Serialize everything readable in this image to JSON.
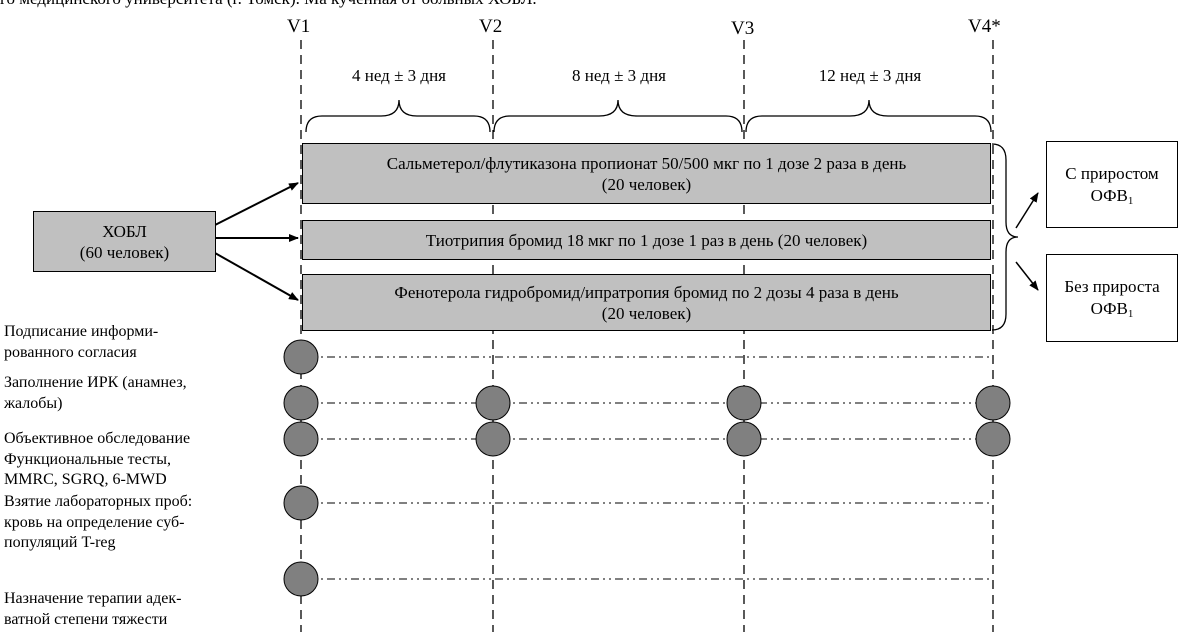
{
  "header_cut_text": "го медицинского университета (г. Томск). Ма           кученная от больных ХОБЛ.",
  "visits": [
    "V1",
    "V2",
    "V3",
    "V4*"
  ],
  "durations": [
    "4 нед ± 3 дня",
    "8 нед ± 3 дня",
    "12 нед ± 3 дня"
  ],
  "copd_box": {
    "line1": "ХОБЛ",
    "line2": "(60 человек)"
  },
  "therapies": [
    {
      "line1": "Сальметерол/флутиказона пропионат 50/500 мкг по 1 дозе 2 раза в день",
      "line2": "(20 человек)"
    },
    {
      "line1": "Тиотрипия бромид 18 мкг по 1 дозе 1 раз в день (20 человек)",
      "line2": ""
    },
    {
      "line1": "Фенотерола гидробромид/ипратропия бромид  по 2 дозы 4 раза в день",
      "line2": "(20 человек)"
    }
  ],
  "outcomes": [
    {
      "line1": "С приростом",
      "line2_main": "ОФВ",
      "line2_sub": "1"
    },
    {
      "line1": "Без прироста",
      "line2_main": "ОФВ",
      "line2_sub": "1"
    }
  ],
  "procedures": [
    {
      "lines": [
        "Подписание информи-",
        "рованного согласия"
      ],
      "visits": [
        true,
        false,
        false,
        false
      ]
    },
    {
      "lines": [
        "Заполнение ИРК (анамнез,",
        "жалобы)"
      ],
      "visits": [
        true,
        true,
        true,
        true
      ]
    },
    {
      "lines": [
        "Объективное обследование",
        "Функциональные тесты,",
        "MMRC, SGRQ, 6-MWD"
      ],
      "visits": [
        true,
        true,
        true,
        true
      ]
    },
    {
      "lines": [
        "Взятие лабораторных проб:",
        "кровь на определение суб-",
        "популяций T-reg"
      ],
      "visits": [
        true,
        false,
        false,
        false
      ]
    },
    {
      "lines": [
        "Назначение терапии адек-",
        "ватной степени тяжести"
      ],
      "visits": [
        true,
        false,
        false,
        false
      ]
    }
  ],
  "colors": {
    "box_fill": "#c0c0c0",
    "marker_fill": "#808080",
    "line": "#000000"
  }
}
